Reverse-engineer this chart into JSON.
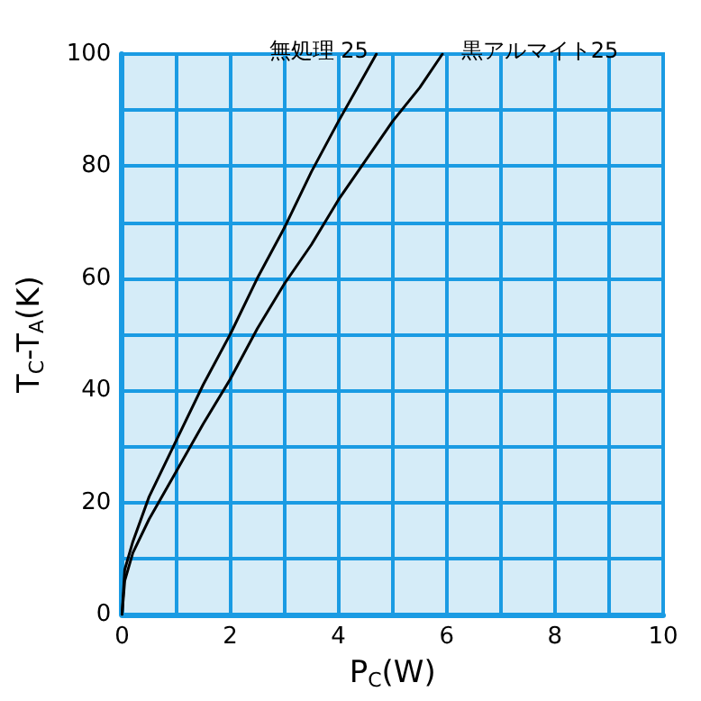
{
  "chart_data": {
    "type": "line",
    "xlabel": "P$_{C}$(W)",
    "ylabel": "T$_{C}$-T$_{A}$(K)",
    "xlim": [
      0,
      10
    ],
    "ylim": [
      0,
      100
    ],
    "xticks": [
      0,
      {
        "value": 1,
        "label": null
      },
      2,
      {
        "value": 3,
        "label": null
      },
      4,
      {
        "value": 5,
        "label": null
      },
      6,
      {
        "value": 7,
        "label": null
      },
      8,
      {
        "value": 9,
        "label": null
      },
      10
    ],
    "yticks": [
      0,
      {
        "value": 10,
        "label": null
      },
      20,
      {
        "value": 30,
        "label": null
      },
      40,
      {
        "value": 50,
        "label": null
      },
      60,
      {
        "value": 70,
        "label": null
      },
      80,
      {
        "value": 90,
        "label": null
      },
      100
    ],
    "grid": true,
    "legend": false,
    "marker": "none",
    "line_style": "solid",
    "series": [
      {
        "name": "無処理 25",
        "color": "#000000",
        "x": [
          0,
          0.05,
          0.2,
          0.5,
          1,
          1.5,
          2,
          2.5,
          3,
          3.5,
          4,
          4.7
        ],
        "values": [
          0,
          8,
          13,
          21,
          31,
          41,
          50,
          60,
          69,
          79,
          88,
          100
        ]
      },
      {
        "name": "黒アルマイト25",
        "color": "#000000",
        "x": [
          0,
          0.05,
          0.2,
          0.5,
          1,
          1.5,
          2,
          2.5,
          3,
          3.5,
          4,
          4.5,
          5,
          5.5,
          5.92
        ],
        "values": [
          0,
          6,
          11,
          17,
          25.5,
          34,
          42,
          51,
          59,
          66,
          74,
          81,
          88,
          94,
          100
        ]
      }
    ]
  }
}
